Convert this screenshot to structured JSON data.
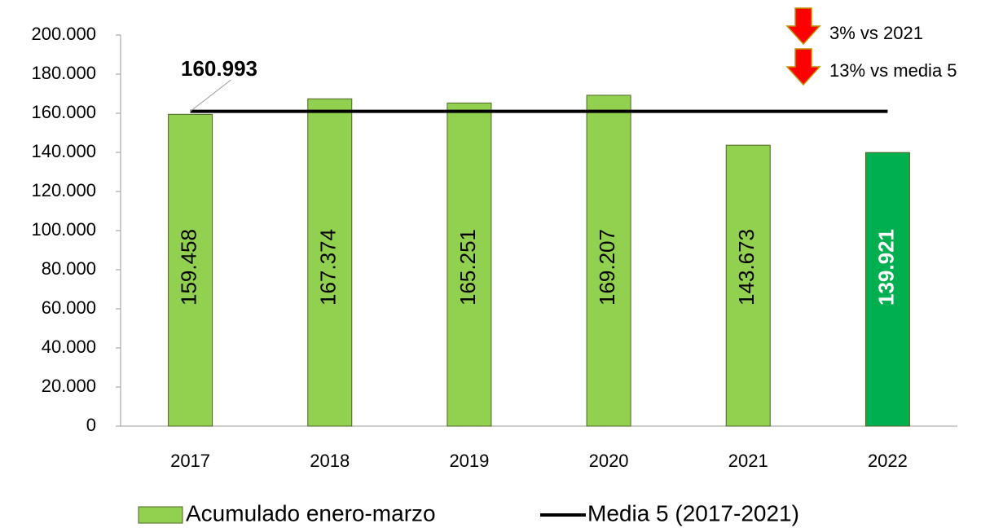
{
  "chart_data": {
    "type": "bar",
    "categories": [
      "2017",
      "2018",
      "2019",
      "2020",
      "2021",
      "2022"
    ],
    "series": [
      {
        "name": "Acumulado enero-marzo",
        "color": "#92d050",
        "colors": [
          "#92d050",
          "#92d050",
          "#92d050",
          "#92d050",
          "#92d050",
          "#00b050"
        ],
        "values": [
          159458,
          167374,
          165251,
          169207,
          143673,
          139921
        ],
        "value_labels": [
          "159.458",
          "167.374",
          "165.251",
          "169.207",
          "143.673",
          "139.921"
        ]
      },
      {
        "name": "Media 5 (2017-2021)",
        "type": "line",
        "color": "#000000",
        "value": 160993,
        "value_label": "160.993"
      }
    ],
    "ylim": [
      0,
      200000
    ],
    "yticks": [
      0,
      {
        "value": 20000,
        "label": "20.000"
      },
      {
        "value": 40000,
        "label": "40.000"
      },
      {
        "value": 60000,
        "label": "60.000"
      },
      {
        "value": 80000,
        "label": "80.000"
      },
      {
        "value": 100000,
        "label": "100.000"
      },
      {
        "value": 120000,
        "label": "120.000"
      },
      {
        "value": 140000,
        "label": "140.000"
      },
      {
        "value": 160000,
        "label": "160.000"
      },
      {
        "value": 180000,
        "label": "180.000"
      },
      {
        "value": 200000,
        "label": "200.000"
      }
    ],
    "annotations": [
      "3% vs 2021",
      "13% vs media 5"
    ],
    "grid": false
  }
}
